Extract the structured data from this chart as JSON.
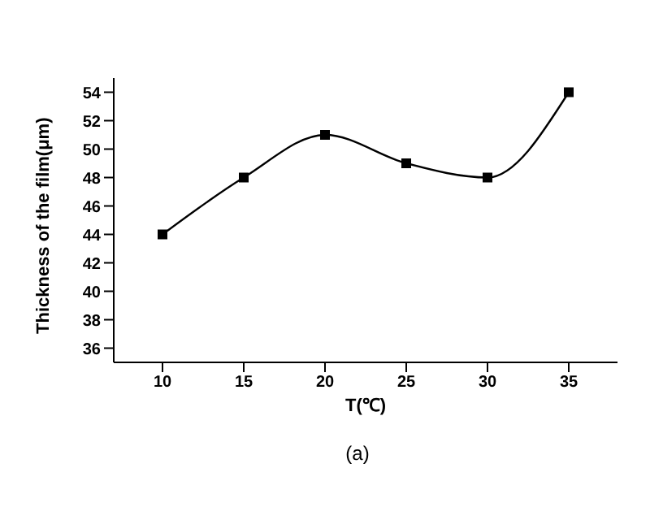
{
  "chart_data": {
    "type": "line",
    "xlabel": "T(℃)",
    "ylabel": "Thickness of the film(μm)",
    "annotations": [
      "(a)"
    ],
    "x": [
      10,
      15,
      20,
      25,
      30,
      35
    ],
    "series": [
      {
        "color": "#000000",
        "values": [
          44,
          48,
          51,
          49,
          48,
          54
        ]
      }
    ],
    "xlim": [
      7,
      38
    ],
    "xticks": [
      10,
      15,
      20,
      25,
      30,
      35
    ],
    "ylim": [
      35,
      55
    ],
    "yticks": [
      36,
      38,
      40,
      42,
      44,
      46,
      48,
      50,
      52,
      54
    ],
    "grid": false,
    "legend": false,
    "marker": "square",
    "line_style": "solid"
  }
}
